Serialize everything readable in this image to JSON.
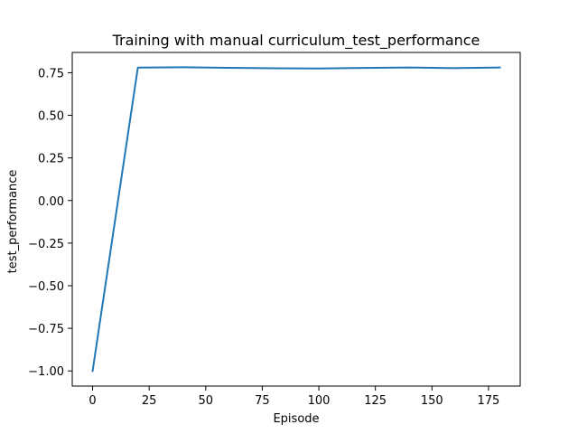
{
  "chart_data": {
    "type": "line",
    "title": "Training with manual curriculum_test_performance",
    "xlabel": "Episode",
    "ylabel": "test_performance",
    "xlim": [
      -9,
      189
    ],
    "ylim": [
      -1.089,
      0.869
    ],
    "xticks": [
      0,
      25,
      50,
      75,
      100,
      125,
      150,
      175
    ],
    "xtick_labels": [
      "0",
      "25",
      "50",
      "75",
      "100",
      "125",
      "150",
      "175"
    ],
    "yticks": [
      -1.0,
      -0.75,
      -0.5,
      -0.25,
      0.0,
      0.25,
      0.5,
      0.75
    ],
    "ytick_labels": [
      "−1.00",
      "−0.75",
      "−0.50",
      "−0.25",
      "0.00",
      "0.25",
      "0.50",
      "0.75"
    ],
    "grid": false,
    "series": [
      {
        "color": "#1f77b4",
        "x": [
          0,
          20,
          40,
          60,
          80,
          100,
          120,
          140,
          160,
          180
        ],
        "y": [
          -1.0,
          0.78,
          0.782,
          0.779,
          0.776,
          0.775,
          0.778,
          0.781,
          0.777,
          0.781
        ]
      }
    ]
  }
}
